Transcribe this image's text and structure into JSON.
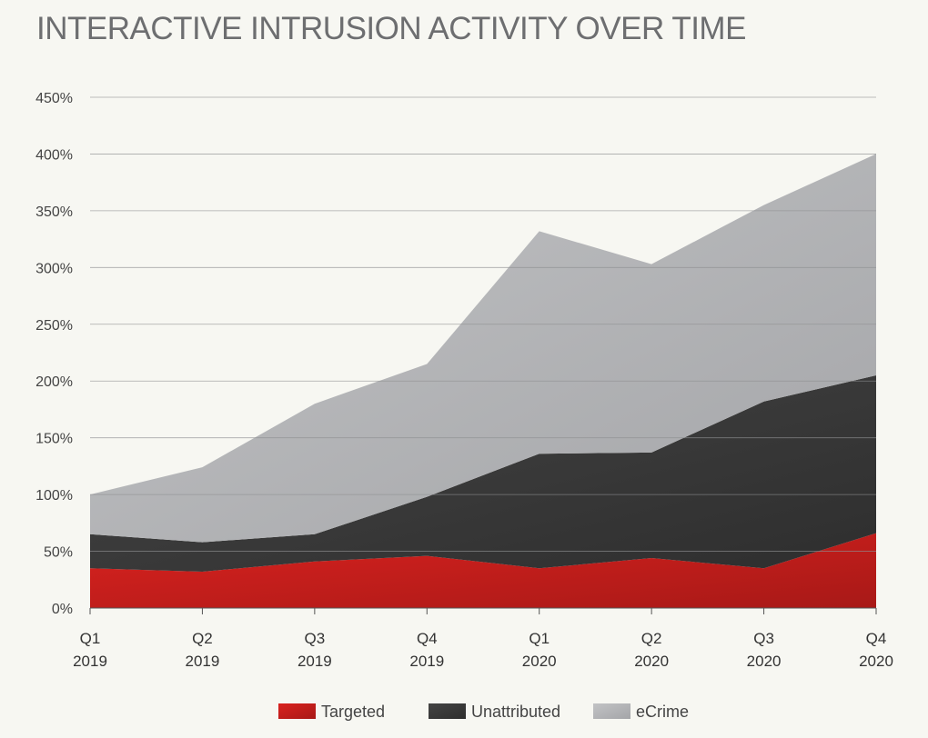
{
  "chart_data": {
    "type": "area",
    "stacked": true,
    "title": "INTERACTIVE INTRUSION ACTIVITY OVER TIME",
    "xlabel": "",
    "ylabel": "",
    "categories": [
      [
        "Q1",
        "2019"
      ],
      [
        "Q2",
        "2019"
      ],
      [
        "Q3",
        "2019"
      ],
      [
        "Q4",
        "2019"
      ],
      [
        "Q1",
        "2020"
      ],
      [
        "Q2",
        "2020"
      ],
      [
        "Q3",
        "2020"
      ],
      [
        "Q4",
        "2020"
      ]
    ],
    "ylim": [
      0,
      450
    ],
    "yticks": [
      0,
      50,
      100,
      150,
      200,
      250,
      300,
      350,
      400,
      450
    ],
    "ytick_labels": [
      "0%",
      "50%",
      "100%",
      "150%",
      "200%",
      "250%",
      "300%",
      "350%",
      "400%",
      "450%"
    ],
    "grid": true,
    "legend_position": "bottom",
    "series": [
      {
        "name": "Targeted",
        "values": [
          35,
          32,
          41,
          46,
          35,
          44,
          35,
          66
        ],
        "color": "#d9221f",
        "color_end": "#a81917"
      },
      {
        "name": "Unattributed",
        "values": [
          30,
          26,
          24,
          52,
          101,
          93,
          147,
          139
        ],
        "color": "#444444",
        "color_end": "#2e2e2e"
      },
      {
        "name": "eCrime",
        "values": [
          35,
          66,
          115,
          117,
          196,
          166,
          173,
          195
        ],
        "color": "#c2c3c5",
        "color_end": "#a4a5a8"
      }
    ]
  }
}
